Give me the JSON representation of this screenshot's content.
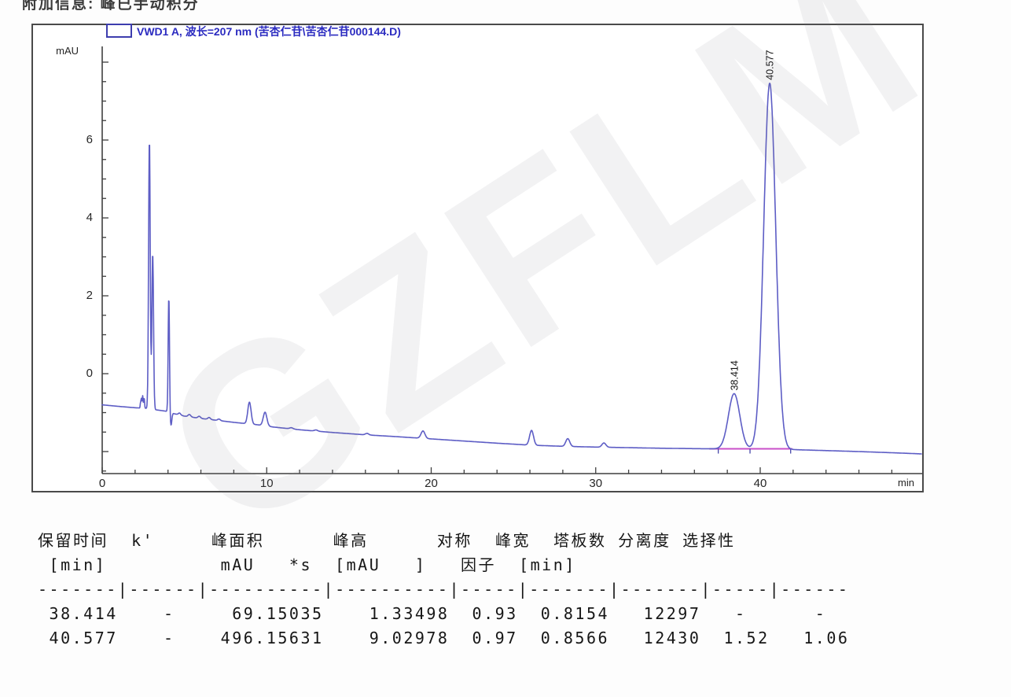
{
  "page": {
    "top_info": "附加信息: 峰已手动积分",
    "watermark": "GZFLM"
  },
  "chart": {
    "legend_label": "VWD1 A, 波长=207 nm (苦杏仁苷\\苦杏仁苷000144.D)",
    "y_unit": "mAU",
    "x_unit": "min"
  },
  "chart_data": {
    "type": "line",
    "title": "VWD1 A, 波长=207 nm (苦杏仁苷\\苦杏仁苷000144.D)",
    "xlabel": "min",
    "ylabel": "mAU",
    "xlim": [
      0,
      49.8
    ],
    "ylim": [
      -2.63,
      8.46
    ],
    "x_ticks": [
      0,
      10,
      20,
      30,
      40
    ],
    "x_minor_step": 2,
    "y_ticks": [
      6,
      4,
      2,
      0
    ],
    "y_minor_step": 0.5,
    "grid": false,
    "legend_position": "top",
    "line_color": "#5d5dc5",
    "integration_color": "#c84fc8",
    "baseline_anchors": [
      [
        0,
        -0.8
      ],
      [
        1,
        -0.84
      ],
      [
        2,
        -0.875
      ],
      [
        2.7,
        -0.89
      ],
      [
        3.3,
        -0.93
      ],
      [
        3.9,
        -0.965
      ],
      [
        4.4,
        -1.03
      ],
      [
        5,
        -1.09
      ],
      [
        6,
        -1.15
      ],
      [
        7,
        -1.2
      ],
      [
        8,
        -1.25
      ],
      [
        9.4,
        -1.31
      ],
      [
        10.4,
        -1.37
      ],
      [
        12,
        -1.44
      ],
      [
        14,
        -1.51
      ],
      [
        16,
        -1.57
      ],
      [
        18,
        -1.62
      ],
      [
        20,
        -1.675
      ],
      [
        22,
        -1.73
      ],
      [
        24,
        -1.785
      ],
      [
        26,
        -1.835
      ],
      [
        28,
        -1.865
      ],
      [
        30,
        -1.885
      ],
      [
        32,
        -1.9
      ],
      [
        34,
        -1.915
      ],
      [
        36,
        -1.925
      ],
      [
        38,
        -1.932
      ],
      [
        40,
        -1.937
      ],
      [
        42,
        -1.95
      ],
      [
        44,
        -1.975
      ],
      [
        46,
        -2.0
      ],
      [
        48,
        -2.03
      ],
      [
        49.8,
        -2.06
      ]
    ],
    "peaks_gaussian": [
      [
        2.33,
        0.12,
        0.02
      ],
      [
        2.38,
        0.24,
        0.025
      ],
      [
        2.46,
        0.32,
        0.028
      ],
      [
        2.55,
        0.26,
        0.025
      ],
      [
        2.87,
        6.9,
        0.05
      ],
      [
        3.07,
        4.0,
        0.05
      ],
      [
        4.05,
        2.95,
        0.04
      ],
      [
        4.18,
        -0.33,
        0.05
      ],
      [
        4.7,
        0.05,
        0.07
      ],
      [
        5.3,
        0.06,
        0.08
      ],
      [
        5.9,
        0.05,
        0.08
      ],
      [
        6.5,
        0.05,
        0.08
      ],
      [
        7.1,
        0.04,
        0.08
      ],
      [
        8.95,
        0.56,
        0.1
      ],
      [
        9.9,
        0.35,
        0.11
      ],
      [
        11.5,
        0.03,
        0.1
      ],
      [
        13.0,
        0.03,
        0.1
      ],
      [
        16.1,
        0.04,
        0.1
      ],
      [
        19.5,
        0.19,
        0.12
      ],
      [
        26.1,
        0.38,
        0.12
      ],
      [
        28.3,
        0.2,
        0.12
      ],
      [
        30.5,
        0.11,
        0.12
      ],
      [
        38.414,
        1.42,
        0.346
      ],
      [
        40.577,
        9.4,
        0.364
      ]
    ],
    "annotated_peaks": [
      {
        "rt": 38.414,
        "label": "38.414"
      },
      {
        "rt": 40.577,
        "label": "40.577"
      }
    ],
    "integration_baseline": {
      "t_start": 36.9,
      "t_end": 41.95,
      "value": -1.93,
      "marker_t": [
        37.45,
        39.38,
        41.85
      ]
    }
  },
  "peak_table": {
    "lines": [
      "保留时间  k'     峰面积      峰高      对称  峰宽  塔板数 分离度 选择性",
      " [min]          mAU   *s  [mAU   ]   因子  [min]",
      "-------|------|----------|----------|-----|-------|-------|-----|------",
      " 38.414    -     69.15035    1.33498  0.93  0.8154   12297   -      -",
      " 40.577    -    496.15631    9.02978  0.97  0.8566   12430  1.52   1.06"
    ],
    "columns": [
      "保留时间 [min]",
      "k'",
      "峰面积 mAU*s",
      "峰高 [mAU]",
      "对称因子",
      "峰宽 [min]",
      "塔板数",
      "分离度",
      "选择性"
    ],
    "rows": [
      [
        "38.414",
        "-",
        "69.15035",
        "1.33498",
        "0.93",
        "0.8154",
        "12297",
        "-",
        "-"
      ],
      [
        "40.577",
        "-",
        "496.15631",
        "9.02978",
        "0.97",
        "0.8566",
        "12430",
        "1.52",
        "1.06"
      ]
    ]
  }
}
